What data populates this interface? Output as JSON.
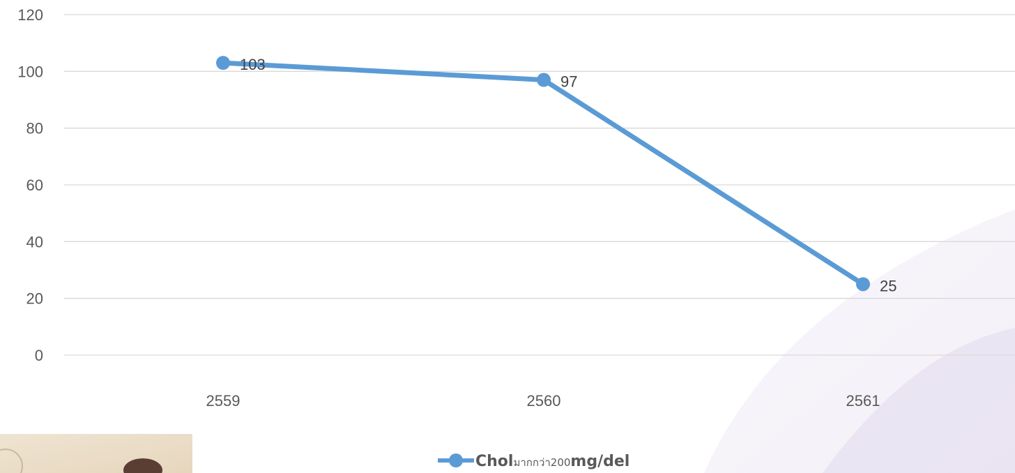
{
  "chart_data": {
    "type": "line",
    "categories": [
      "2559",
      "2560",
      "2561"
    ],
    "series": [
      {
        "name": "Cholมากกว่า200mg/del",
        "name_parts": [
          "Chol",
          "มากกว่า200",
          "mg/del"
        ],
        "values": [
          103,
          97,
          25
        ],
        "color": "#5B9BD5"
      }
    ],
    "y_ticks": [
      "0",
      "20",
      "40",
      "60",
      "80",
      "100",
      "120"
    ],
    "ylim": [
      0,
      120
    ],
    "grid": true,
    "legend_position": "bottom",
    "title": "",
    "xlabel": "",
    "ylabel": ""
  }
}
